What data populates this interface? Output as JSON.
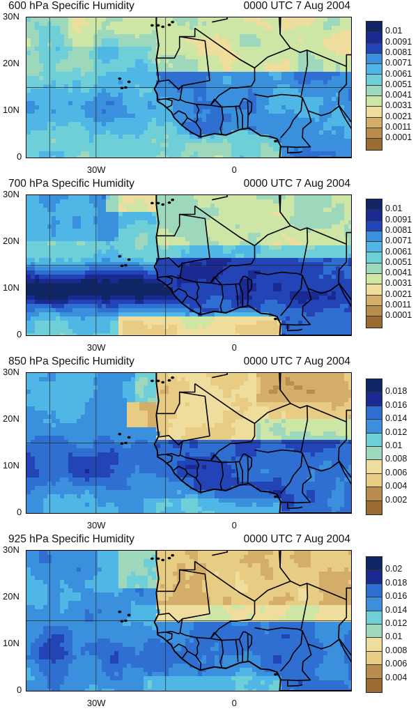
{
  "colors": {
    "scale_low_to_high": [
      "#9b6b34",
      "#b98d4e",
      "#d4ae68",
      "#e8cc84",
      "#eedd9c",
      "#cde6a6",
      "#9ed8bc",
      "#6fcfd8",
      "#4fb6e6",
      "#3a90dc",
      "#2f6fd2",
      "#2344b6",
      "#1a2a92",
      "#112664"
    ],
    "land_brown": "#c79b5d",
    "border_line": "#000000"
  },
  "panels": [
    {
      "title": "600 hPa Specific Humidity",
      "time": "0000 UTC 7 Aug 2004",
      "y_ticks": [
        "30N",
        "20N",
        "10N",
        "0"
      ],
      "x_ticks": [
        "30W",
        "0"
      ],
      "colorbar": [
        "0.01",
        "0.0091",
        "0.0081",
        "0.0071",
        "0.0061",
        "0.0051",
        "0.0041",
        "0.0031",
        "0.0021",
        "0.0011",
        "0.0001"
      ],
      "moisture": "mid"
    },
    {
      "title": "700 hPa Specific Humidity",
      "time": "0000 UTC 7 Aug 2004",
      "y_ticks": [
        "30N",
        "20N",
        "10N",
        "0"
      ],
      "x_ticks": [
        "30W",
        "0"
      ],
      "colorbar": [
        "0.01",
        "0.0091",
        "0.0081",
        "0.0071",
        "0.0061",
        "0.0051",
        "0.0041",
        "0.0031",
        "0.0021",
        "0.0011",
        "0.0001"
      ],
      "moisture": "wet"
    },
    {
      "title": "850 hPa Specific Humidity",
      "time": "0000 UTC 7 Aug 2004",
      "y_ticks": [
        "30N",
        "20N",
        "10N",
        "0"
      ],
      "x_ticks": [
        "30W",
        "0"
      ],
      "colorbar": [
        "0.018",
        "0.016",
        "0.014",
        "0.012",
        "0.01",
        "0.008",
        "0.006",
        "0.004",
        "0.002"
      ],
      "moisture": "low"
    },
    {
      "title": "925 hPa Specific Humidity",
      "time": "0000 UTC 7 Aug 2004",
      "y_ticks": [
        "30N",
        "20N",
        "10N",
        "0"
      ],
      "x_ticks": [
        "30W",
        "0"
      ],
      "colorbar": [
        "0.02",
        "0.018",
        "0.016",
        "0.014",
        "0.012",
        "0.01",
        "0.008",
        "0.006",
        "0.004"
      ],
      "moisture": "surface"
    }
  ]
}
